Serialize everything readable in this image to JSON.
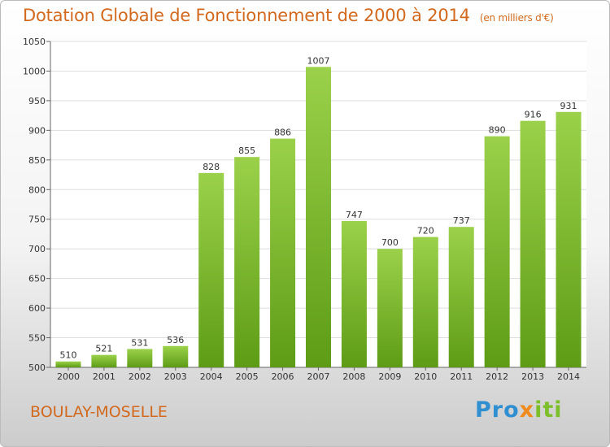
{
  "title": "Dotation Globale de Fonctionnement de 2000 à 2014",
  "unit_note": "(en milliers d'€)",
  "city": "BOULAY-MOSELLE",
  "logo": "Proxiti",
  "colors": {
    "bar_top": "#9bd14a",
    "bar_bottom": "#5e9c16",
    "title": "#d2691e"
  },
  "chart_data": {
    "type": "bar",
    "categories": [
      "2000",
      "2001",
      "2002",
      "2003",
      "2004",
      "2005",
      "2006",
      "2007",
      "2008",
      "2009",
      "2010",
      "2011",
      "2012",
      "2013",
      "2014"
    ],
    "values": [
      510,
      521,
      531,
      536,
      828,
      855,
      886,
      1007,
      747,
      700,
      720,
      737,
      890,
      916,
      931
    ],
    "ylim": [
      500,
      1050
    ],
    "yticks": [
      500,
      550,
      600,
      650,
      700,
      750,
      800,
      850,
      900,
      950,
      1000,
      1050
    ],
    "grid": true
  }
}
